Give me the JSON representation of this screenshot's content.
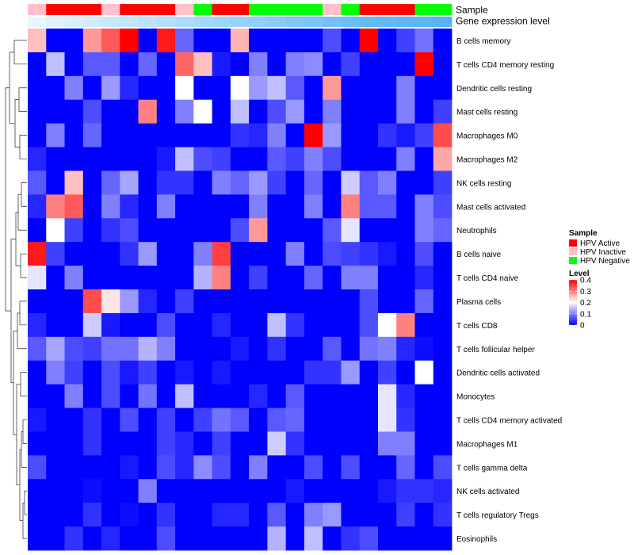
{
  "chart_data": {
    "type": "heatmap",
    "title": "",
    "annotation_tracks": [
      "Sample",
      "Gene expression level"
    ],
    "sample_groups": [
      "inactive",
      "active",
      "active",
      "active",
      "inactive",
      "active",
      "active",
      "active",
      "inactive",
      "negative",
      "active",
      "active",
      "negative",
      "negative",
      "negative",
      "negative",
      "inactive",
      "negative",
      "active",
      "active",
      "active",
      "negative",
      "negative"
    ],
    "expression_level_track": [
      0.0,
      0.05,
      0.1,
      0.15,
      0.2,
      0.25,
      0.3,
      0.35,
      0.4,
      0.45,
      0.5,
      0.55,
      0.6,
      0.65,
      0.7,
      0.75,
      0.8,
      0.85,
      0.9,
      0.92,
      0.95,
      0.97,
      1.0
    ],
    "rows": [
      {
        "label": "B cells memory",
        "values": [
          0.25,
          0,
          0,
          0.28,
          0.33,
          0.4,
          0,
          0.38,
          0.08,
          0,
          0,
          0.26,
          0,
          0,
          0,
          0,
          0.06,
          0,
          0.4,
          0,
          0.05,
          0.09,
          0
        ]
      },
      {
        "label": "T cells CD4 memory resting",
        "values": [
          0,
          0.15,
          0,
          0.07,
          0.07,
          0,
          0.08,
          0,
          0.32,
          0.25,
          0.02,
          0,
          0.1,
          0,
          0.1,
          0.11,
          0,
          0.05,
          0,
          0,
          0,
          0.4,
          0
        ]
      },
      {
        "label": "Dendritic cells resting",
        "values": [
          0,
          0,
          0.1,
          0,
          0.12,
          0.03,
          0,
          0,
          0.2,
          0,
          0,
          0.2,
          0.12,
          0.15,
          0.07,
          0,
          0.28,
          0,
          0,
          0,
          0.1,
          0,
          0
        ]
      },
      {
        "label": "Mast cells resting",
        "values": [
          0,
          0,
          0,
          0.06,
          0,
          0,
          0.3,
          0,
          0.1,
          0.2,
          0,
          0.15,
          0,
          0.06,
          0.12,
          0,
          0.1,
          0,
          0,
          0,
          0.1,
          0,
          0.05
        ]
      },
      {
        "label": "Macrophages M0",
        "values": [
          0,
          0.1,
          0,
          0.08,
          0,
          0,
          0,
          0,
          0,
          0,
          0,
          0.04,
          0.03,
          0.1,
          0,
          0.4,
          0.12,
          0,
          0,
          0.04,
          0.02,
          0.05,
          0.34
        ]
      },
      {
        "label": "Macrophages M2",
        "values": [
          0.03,
          0,
          0,
          0,
          0,
          0,
          0,
          0.02,
          0.15,
          0.06,
          0.05,
          0,
          0,
          0.07,
          0.05,
          0.1,
          0.06,
          0,
          0,
          0,
          0.1,
          0,
          0.27
        ]
      },
      {
        "label": "NK cells resting",
        "values": [
          0.07,
          0,
          0.25,
          0,
          0.08,
          0.13,
          0,
          0.04,
          0.04,
          0,
          0.1,
          0.08,
          0.12,
          0.05,
          0,
          0.08,
          0,
          0.16,
          0.07,
          0.1,
          0,
          0,
          0.05
        ]
      },
      {
        "label": "Mast cells activated",
        "values": [
          0.03,
          0.3,
          0.33,
          0,
          0.1,
          0.03,
          0,
          0.1,
          0,
          0,
          0,
          0,
          0.1,
          0,
          0,
          0.1,
          0,
          0.3,
          0.07,
          0.07,
          0,
          0.1,
          0.06
        ]
      },
      {
        "label": "Neutrophils",
        "values": [
          0,
          0.2,
          0.05,
          0,
          0.04,
          0.06,
          0,
          0,
          0,
          0,
          0,
          0.06,
          0.28,
          0,
          0,
          0,
          0.07,
          0.18,
          0,
          0,
          0,
          0.1,
          0.08
        ]
      },
      {
        "label": "B cells naive",
        "values": [
          0.38,
          0.05,
          0,
          0,
          0,
          0.04,
          0.12,
          0,
          0,
          0.1,
          0.35,
          0,
          0,
          0,
          0.1,
          0,
          0.06,
          0.05,
          0.04,
          0.02,
          0,
          0.06,
          0
        ]
      },
      {
        "label": "T cells CD4 naive",
        "values": [
          0.18,
          0,
          0.1,
          0,
          0,
          0,
          0,
          0,
          0,
          0.14,
          0.3,
          0,
          0.05,
          0,
          0,
          0.08,
          0,
          0.1,
          0.1,
          0,
          0,
          0.03,
          0
        ]
      },
      {
        "label": "Plasma cells",
        "values": [
          0,
          0,
          0,
          0.34,
          0.22,
          0.12,
          0.03,
          0,
          0.05,
          0,
          0,
          0,
          0,
          0,
          0,
          0,
          0,
          0,
          0.06,
          0,
          0,
          0.08,
          0
        ]
      },
      {
        "label": "T cells CD8",
        "values": [
          0.03,
          0,
          0,
          0.16,
          0.02,
          0,
          0,
          0.06,
          0,
          0,
          0.03,
          0,
          0,
          0.15,
          0.04,
          0,
          0,
          0,
          0.06,
          0.2,
          0.3,
          0,
          0
        ]
      },
      {
        "label": "T cells follicular helper",
        "values": [
          0.07,
          0.13,
          0.06,
          0.05,
          0.09,
          0.09,
          0.14,
          0.1,
          0,
          0,
          0,
          0.02,
          0,
          0.04,
          0,
          0,
          0.07,
          0,
          0.09,
          0.1,
          0.03,
          0.01,
          0
        ]
      },
      {
        "label": "Dendritic cells activated",
        "values": [
          0,
          0.1,
          0.05,
          0,
          0.06,
          0.02,
          0.05,
          0,
          0.02,
          0,
          0.02,
          0,
          0,
          0,
          0,
          0.04,
          0.04,
          0.12,
          0,
          0.05,
          0,
          0.2,
          0
        ]
      },
      {
        "label": "Monocytes",
        "values": [
          0,
          0,
          0.1,
          0,
          0.06,
          0,
          0.09,
          0,
          0.15,
          0,
          0,
          0,
          0.03,
          0,
          0.07,
          0,
          0,
          0,
          0,
          0.18,
          0.03,
          0,
          0
        ]
      },
      {
        "label": "T cells CD4 memory activated",
        "values": [
          0.02,
          0,
          0,
          0.04,
          0,
          0.06,
          0,
          0.05,
          0,
          0.05,
          0.09,
          0.07,
          0,
          0.07,
          0.08,
          0,
          0,
          0,
          0,
          0.18,
          0.04,
          0,
          0
        ]
      },
      {
        "label": "Macrophages M1",
        "values": [
          0,
          0,
          0,
          0.04,
          0,
          0,
          0,
          0.05,
          0.03,
          0,
          0.05,
          0,
          0,
          0.16,
          0.04,
          0,
          0,
          0,
          0,
          0.1,
          0.1,
          0,
          0
        ]
      },
      {
        "label": "T cells gamma delta",
        "values": [
          0.06,
          0,
          0,
          0,
          0,
          0.02,
          0,
          0.06,
          0.03,
          0.11,
          0.06,
          0,
          0.1,
          0,
          0,
          0.06,
          0,
          0.06,
          0,
          0,
          0.08,
          0,
          0.06
        ]
      },
      {
        "label": "NK cells activated",
        "values": [
          0,
          0,
          0,
          0.01,
          0,
          0,
          0.1,
          0,
          0,
          0,
          0,
          0,
          0,
          0,
          0.02,
          0,
          0,
          0,
          0,
          0.02,
          0.04,
          0.04,
          0.03
        ]
      },
      {
        "label": "T cells regulatory  Tregs",
        "values": [
          0,
          0,
          0,
          0.04,
          0,
          0.01,
          0,
          0.04,
          0,
          0,
          0.03,
          0.03,
          0,
          0.07,
          0,
          0.1,
          0.12,
          0,
          0,
          0,
          0.05,
          0,
          0.04
        ]
      },
      {
        "label": "Eosinophils",
        "values": [
          0,
          0,
          0.04,
          0,
          0.03,
          0,
          0,
          0.06,
          0,
          0,
          0,
          0,
          0,
          0.14,
          0,
          0.15,
          0,
          0.04,
          0.06,
          0,
          0,
          0,
          0
        ]
      }
    ],
    "legend_sample": {
      "title": "Sample",
      "items": [
        {
          "key": "active",
          "label": "HPV Active",
          "color": "#ff0000"
        },
        {
          "key": "inactive",
          "label": "HPV Inactive",
          "color": "#ffc0cb"
        },
        {
          "key": "negative",
          "label": "HPV Negative",
          "color": "#00ff00"
        }
      ]
    },
    "legend_level": {
      "title": "Level",
      "ticks": [
        {
          "label": "0.4",
          "value": 0.4
        },
        {
          "label": "0.3",
          "value": 0.3
        },
        {
          "label": "0.2",
          "value": 0.2
        },
        {
          "label": "0.1",
          "value": 0.1
        },
        {
          "label": "0",
          "value": 0
        }
      ]
    },
    "color_scale": {
      "min": 0,
      "mid": 0.2,
      "max": 0.4,
      "low": "#0000ff",
      "mid_color": "#ffffff",
      "high": "#ff0000"
    },
    "track_colors": {
      "expression_start": "#e6f7ff",
      "expression_end": "#56b4f4"
    }
  }
}
